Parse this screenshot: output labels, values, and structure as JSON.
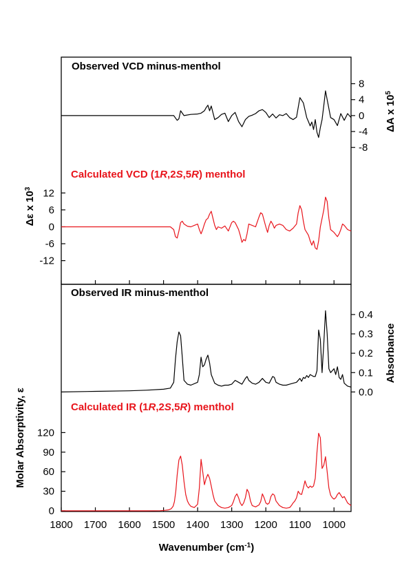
{
  "colors": {
    "observed": "#000000",
    "calculated": "#e8141b",
    "axis": "#000000"
  },
  "xaxis": {
    "label": "Wavenumber (cm",
    "label_sup": "-1",
    "label_end": ")",
    "range": [
      1800,
      950
    ],
    "ticks": [
      "1800",
      "1700",
      "1600",
      "1500",
      "1400",
      "1300",
      "1200",
      "1100",
      "1000"
    ],
    "tick_values": [
      1800,
      1700,
      1600,
      1500,
      1400,
      1300,
      1200,
      1100,
      1000
    ]
  },
  "axes": {
    "observed_vcd": {
      "label": "ΔA x 10",
      "label_sup": "5",
      "ticks": [
        "8",
        "4",
        "0",
        "-4",
        "-8"
      ],
      "tick_values": [
        8,
        4,
        0,
        -4,
        -8
      ]
    },
    "calculated_vcd": {
      "label": "Δε x 10",
      "label_sup": "3",
      "ticks": [
        "12",
        "6",
        "0",
        "-6",
        "-12"
      ],
      "tick_values": [
        12,
        6,
        0,
        -6,
        -12
      ]
    },
    "observed_ir": {
      "label": "Absorbance",
      "ticks": [
        "0.4",
        "0.3",
        "0.2",
        "0.1",
        "0.0"
      ],
      "tick_values": [
        0.4,
        0.3,
        0.2,
        0.1,
        0.0
      ]
    },
    "calculated_ir": {
      "label": "Molar Absorptivity, ε",
      "ticks": [
        "120",
        "90",
        "60",
        "30",
        "0"
      ],
      "tick_values": [
        120,
        90,
        60,
        30,
        0
      ]
    }
  },
  "panel_titles": {
    "observed_vcd": "Observed VCD minus-menthol",
    "calculated_vcd": {
      "pre": "Calculated VCD (1",
      "r1": "R",
      "mid1": ",2",
      "s": "S",
      "mid2": ",5",
      "r2": "R",
      "post": ") menthol"
    },
    "observed_ir": "Observed IR minus-menthol",
    "calculated_ir": {
      "pre": "Calculated IR (1",
      "r1": "R",
      "mid1": ",2",
      "s": "S",
      "mid2": ",5",
      "r2": "R",
      "post": ") menthol"
    }
  },
  "chart_data": [
    {
      "type": "line",
      "name": "Observed VCD minus-menthol",
      "y_unit": "ΔA x 10^5",
      "ylim": [
        -9,
        10
      ],
      "x": [
        1800,
        1700,
        1600,
        1500,
        1470,
        1460,
        1455,
        1450,
        1440,
        1420,
        1400,
        1390,
        1380,
        1375,
        1370,
        1365,
        1360,
        1350,
        1340,
        1330,
        1320,
        1310,
        1300,
        1290,
        1280,
        1270,
        1260,
        1250,
        1240,
        1230,
        1220,
        1210,
        1200,
        1190,
        1180,
        1170,
        1160,
        1150,
        1140,
        1130,
        1120,
        1110,
        1100,
        1090,
        1080,
        1075,
        1070,
        1065,
        1060,
        1055,
        1050,
        1045,
        1040,
        1035,
        1030,
        1025,
        1020,
        1010,
        1000,
        990,
        980,
        970,
        960,
        950
      ],
      "y": [
        0,
        0,
        0,
        0,
        0,
        -1.2,
        -0.8,
        1.2,
        0,
        0.3,
        0.4,
        0.6,
        1.2,
        2.0,
        2.6,
        1.2,
        2.4,
        -1.0,
        -0.5,
        0.3,
        0.6,
        -1.5,
        0,
        0.8,
        -1.5,
        -2.8,
        -1.0,
        -0.2,
        0.1,
        0.5,
        1.2,
        1.5,
        0.8,
        -0.5,
        0.4,
        -0.6,
        0.2,
        0,
        0.5,
        -0.5,
        -1.0,
        -0.4,
        4.5,
        3.2,
        -0.5,
        -1.5,
        -2.6,
        -1.6,
        -3.5,
        -1.0,
        -4.2,
        -5.5,
        -3.0,
        -1.0,
        2.5,
        6.2,
        4.0,
        -0.5,
        -1.0,
        -2.5,
        0.5,
        -1.2,
        0.5,
        -0.5
      ]
    },
    {
      "type": "line",
      "name": "Calculated VCD (1R,2S,5R) menthol",
      "y_unit": "Δε x 10^3",
      "ylim": [
        -16,
        15
      ],
      "x": [
        1800,
        1700,
        1600,
        1520,
        1480,
        1470,
        1465,
        1460,
        1455,
        1450,
        1445,
        1440,
        1430,
        1420,
        1410,
        1400,
        1395,
        1390,
        1385,
        1380,
        1375,
        1370,
        1365,
        1360,
        1355,
        1350,
        1345,
        1340,
        1330,
        1320,
        1310,
        1300,
        1295,
        1290,
        1280,
        1275,
        1270,
        1265,
        1260,
        1255,
        1250,
        1240,
        1230,
        1220,
        1215,
        1210,
        1200,
        1195,
        1190,
        1185,
        1180,
        1175,
        1170,
        1160,
        1150,
        1140,
        1130,
        1120,
        1110,
        1105,
        1100,
        1095,
        1090,
        1085,
        1080,
        1075,
        1070,
        1065,
        1060,
        1055,
        1050,
        1045,
        1040,
        1035,
        1030,
        1025,
        1020,
        1015,
        1010,
        1000,
        990,
        985,
        980,
        975,
        970,
        960,
        950
      ],
      "y": [
        0,
        0,
        0,
        0,
        0,
        -1.0,
        -3.5,
        -4.0,
        -1.5,
        1.5,
        2.0,
        1.0,
        0.2,
        0,
        0.5,
        1.0,
        -1.0,
        -2.5,
        -1.0,
        1.0,
        2.5,
        3.0,
        4.5,
        5.5,
        3.0,
        0.5,
        -1.0,
        0,
        -0.5,
        0.3,
        -1.5,
        1.5,
        2.0,
        1.5,
        -1.0,
        -3.0,
        -5.5,
        -4.5,
        -5.0,
        -2.5,
        1.0,
        0.5,
        0,
        3.5,
        5.0,
        4.5,
        0,
        -2.0,
        0.5,
        2.0,
        1.0,
        -0.5,
        0.5,
        1.0,
        0.5,
        -1.0,
        -1.5,
        -0.5,
        1.0,
        5.0,
        7.5,
        6.0,
        2.0,
        -1.0,
        -2.0,
        -3.0,
        -5.0,
        -6.5,
        -5.0,
        -7.5,
        -8.0,
        -5.0,
        0,
        3.0,
        6.0,
        10.5,
        9.0,
        3.0,
        -1.0,
        -2.0,
        -3.5,
        -2.5,
        -1.0,
        1.0,
        0.5,
        -1.0,
        -1.5
      ]
    },
    {
      "type": "line",
      "name": "Observed IR minus-menthol",
      "y_unit": "Absorbance",
      "ylim": [
        -0.02,
        0.46
      ],
      "x": [
        1800,
        1700,
        1600,
        1550,
        1500,
        1480,
        1470,
        1465,
        1460,
        1455,
        1450,
        1445,
        1440,
        1430,
        1420,
        1400,
        1395,
        1390,
        1385,
        1380,
        1375,
        1370,
        1365,
        1360,
        1350,
        1340,
        1330,
        1320,
        1310,
        1300,
        1290,
        1280,
        1270,
        1260,
        1255,
        1250,
        1240,
        1230,
        1220,
        1210,
        1200,
        1190,
        1180,
        1175,
        1170,
        1160,
        1150,
        1140,
        1130,
        1120,
        1110,
        1100,
        1095,
        1090,
        1085,
        1080,
        1075,
        1070,
        1060,
        1055,
        1050,
        1045,
        1040,
        1035,
        1030,
        1025,
        1020,
        1015,
        1010,
        1000,
        995,
        990,
        985,
        980,
        975,
        970,
        960,
        950
      ],
      "y": [
        0.0,
        0.003,
        0.006,
        0.009,
        0.014,
        0.02,
        0.05,
        0.17,
        0.26,
        0.31,
        0.29,
        0.18,
        0.06,
        0.04,
        0.035,
        0.05,
        0.09,
        0.18,
        0.13,
        0.14,
        0.17,
        0.19,
        0.15,
        0.09,
        0.045,
        0.035,
        0.03,
        0.035,
        0.035,
        0.04,
        0.06,
        0.05,
        0.04,
        0.07,
        0.08,
        0.06,
        0.045,
        0.04,
        0.05,
        0.07,
        0.05,
        0.045,
        0.08,
        0.075,
        0.05,
        0.04,
        0.035,
        0.035,
        0.04,
        0.045,
        0.05,
        0.07,
        0.055,
        0.075,
        0.07,
        0.085,
        0.075,
        0.09,
        0.08,
        0.08,
        0.11,
        0.32,
        0.27,
        0.1,
        0.25,
        0.42,
        0.3,
        0.12,
        0.1,
        0.12,
        0.09,
        0.13,
        0.075,
        0.065,
        0.09,
        0.045,
        0.03,
        0.025
      ]
    },
    {
      "type": "line",
      "name": "Calculated IR (1R,2S,5R) menthol",
      "y_unit": "Molar Absorptivity, ε",
      "ylim": [
        0,
        150
      ],
      "x": [
        1800,
        1700,
        1600,
        1550,
        1510,
        1495,
        1485,
        1478,
        1472,
        1468,
        1464,
        1460,
        1455,
        1450,
        1445,
        1440,
        1435,
        1430,
        1425,
        1420,
        1410,
        1400,
        1395,
        1390,
        1385,
        1380,
        1375,
        1370,
        1365,
        1360,
        1355,
        1350,
        1340,
        1330,
        1320,
        1310,
        1300,
        1295,
        1290,
        1285,
        1280,
        1275,
        1270,
        1265,
        1260,
        1255,
        1250,
        1245,
        1240,
        1230,
        1220,
        1215,
        1210,
        1205,
        1200,
        1195,
        1190,
        1185,
        1180,
        1175,
        1170,
        1160,
        1150,
        1140,
        1130,
        1125,
        1120,
        1115,
        1110,
        1105,
        1100,
        1095,
        1090,
        1085,
        1080,
        1075,
        1070,
        1065,
        1060,
        1055,
        1050,
        1045,
        1040,
        1035,
        1030,
        1025,
        1020,
        1015,
        1010,
        1005,
        1000,
        995,
        990,
        985,
        980,
        975,
        970,
        960,
        950
      ],
      "y": [
        0,
        0,
        0,
        0,
        0.2,
        0.8,
        1.5,
        3,
        7,
        14,
        30,
        55,
        78,
        84,
        70,
        45,
        25,
        15,
        10,
        7,
        5,
        10,
        35,
        79,
        60,
        40,
        50,
        56,
        50,
        38,
        25,
        15,
        8,
        5,
        4,
        5,
        8,
        14,
        22,
        26,
        20,
        12,
        8,
        12,
        20,
        33,
        28,
        15,
        8,
        6,
        9,
        14,
        26,
        20,
        12,
        10,
        12,
        22,
        26,
        24,
        15,
        8,
        5,
        4,
        5,
        8,
        12,
        15,
        20,
        30,
        26,
        25,
        35,
        46,
        38,
        35,
        38,
        36,
        38,
        50,
        90,
        119,
        112,
        65,
        70,
        83,
        60,
        35,
        24,
        20,
        18,
        20,
        25,
        28,
        24,
        20,
        22,
        12,
        8
      ]
    }
  ]
}
